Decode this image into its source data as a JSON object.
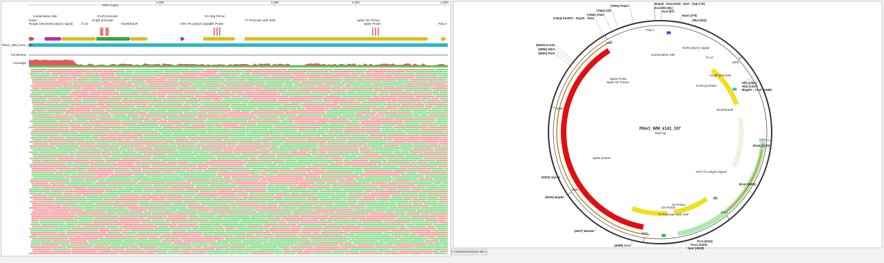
{
  "alignment": {
    "ruler": [
      "1,000",
      "1,200",
      "1,400",
      "1,600"
    ],
    "sequence_name": "Pbiv1_WM_k141_107",
    "rows": [
      "Consensus",
      "Coverage"
    ],
    "features": [
      "Linearization Site",
      "PolyA",
      "Rough DNA",
      "SV40 poly(A) signal",
      "f1 ori",
      "AmpR promoter",
      "SV40 promoter",
      "NeoR/KanR",
      "CMV Copy1",
      "HSV TK poly(A) signal",
      "Ori Seq Primer",
      "Ori Probe",
      "T7 Promoter with SNP",
      "Spike Ter Primer",
      "Spike Probe",
      "Poly A"
    ]
  },
  "map": {
    "name": "Pbiv1_WM_k141_107",
    "length": "7632 bp",
    "enzymes": [
      "BspQI - Esm1104I - EarI - SapI (75)",
      "(7594) PaqCI",
      "(7561) KflI",
      "(7550) AhdI",
      "(7464) PaeR7I - PspXI - XhoI",
      "Eco53kI (81)",
      "SacI (87)",
      "HpaI (379)",
      "MluI (502)",
      "(6930) EcoNI",
      "(6856) NdeI",
      "(6800) PmlI",
      "(5303) SgrAI",
      "(5025) BspEI",
      "(4537) BamHI",
      "(4088) AccI",
      "SfiI (1391)",
      "StuI (1437)",
      "BsgDI* - ClaI* (1488)",
      "RsrII (2135)",
      "BsaI (2605)",
      "PciI (3034)",
      "PacI (3410)",
      "SpeI (3628)"
    ],
    "features": [
      "Poly A",
      "Linearization Site",
      "SV40 poly(A) signal",
      "f1 ori",
      "AmpR promoter",
      "SV40 promoter",
      "NeoR/KanR",
      "HSV TK poly(A) signal",
      "Ori Primer",
      "Ori Probe",
      "T7 Promoter with SNP",
      "Spike Ter Primer",
      "Spike Probe",
      "Spike protein"
    ],
    "ticks": [
      "1000",
      "2000",
      "3000",
      "4000",
      "5000",
      "6000",
      "7000"
    ]
  },
  "enzyme_set_button": "< Unsaved Enzyme Set >"
}
